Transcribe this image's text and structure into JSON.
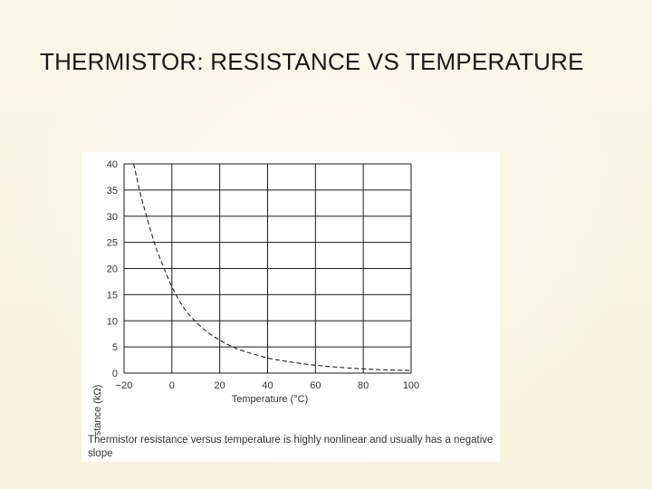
{
  "slide": {
    "title": "THERMISTOR: RESISTANCE VS TEMPERATURE"
  },
  "chart_data": {
    "type": "line",
    "title": "",
    "xlabel": "Temperature (°C)",
    "ylabel": "Resistance (kΩ)",
    "xlim": [
      -20,
      100
    ],
    "ylim": [
      0,
      40
    ],
    "x_ticks": [
      -20,
      0,
      20,
      40,
      60,
      80,
      100
    ],
    "x_tick_labels": [
      "−20",
      "0",
      "20",
      "40",
      "60",
      "80",
      "100"
    ],
    "y_ticks": [
      0,
      5,
      10,
      15,
      20,
      25,
      30,
      35,
      40
    ],
    "grid": true,
    "line_style": "dashed",
    "series": [
      {
        "x": [
          -16,
          -15,
          -13,
          -10,
          -7,
          -5,
          0,
          5,
          10,
          15,
          20,
          25,
          30,
          40,
          50,
          60,
          70,
          80,
          90,
          100
        ],
        "y": [
          40,
          38,
          34,
          29,
          24.5,
          22,
          16.5,
          12.5,
          9.8,
          7.8,
          6.3,
          5.1,
          4.2,
          2.9,
          2.1,
          1.5,
          1.1,
          0.8,
          0.6,
          0.5
        ]
      }
    ],
    "caption": "Thermistor resistance versus temperature is highly nonlinear and usually has a negative slope"
  },
  "colors": {
    "background": "#fbf8ea",
    "grid": "#1a1a1a",
    "curve": "#222222",
    "figure": "#ffffff"
  }
}
